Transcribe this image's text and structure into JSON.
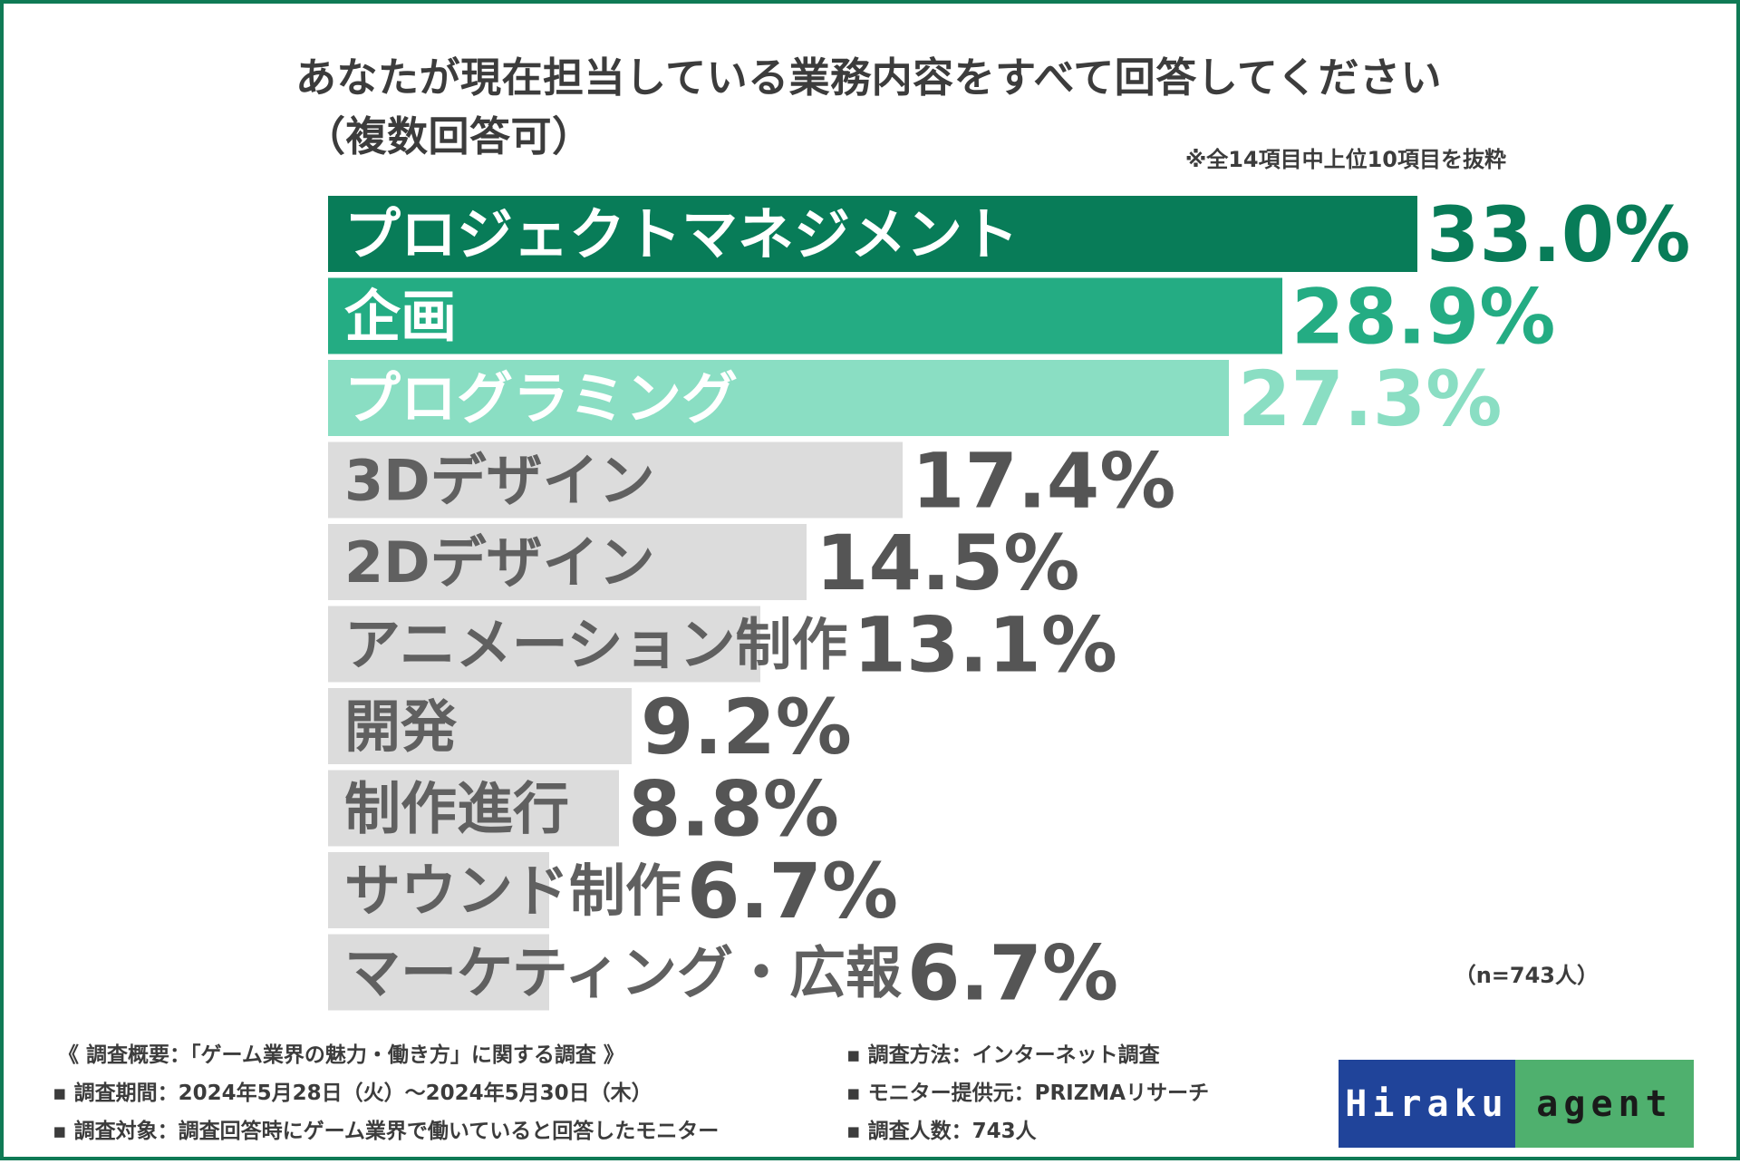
{
  "title_line1": "あなたが現在担当している業務内容をすべて回答してください",
  "title_line2": "（複数回答可）",
  "note": "※全14項目中上位10項目を抜粋",
  "sample_size": "（n=743人）",
  "chart_data": {
    "type": "bar",
    "orientation": "horizontal",
    "title": "あなたが現在担当している業務内容をすべて回答してください（複数回答可）",
    "categories": [
      "プロジェクトマネジメント",
      "企画",
      "プログラミング",
      "3Dデザイン",
      "2Dデザイン",
      "アニメーション制作",
      "開発",
      "制作進行",
      "サウンド制作",
      "マーケティング・広報"
    ],
    "values": [
      33.0,
      28.9,
      27.3,
      17.4,
      14.5,
      13.1,
      9.2,
      8.8,
      6.7,
      6.7
    ],
    "value_labels": [
      "33.0%",
      "28.9%",
      "27.3%",
      "17.4%",
      "14.5%",
      "13.1%",
      "9.2%",
      "8.8%",
      "6.7%",
      "6.7%"
    ],
    "unit": "%",
    "xlim": [
      0,
      33.0
    ],
    "bar_colors": [
      "#087c58",
      "#24ac83",
      "#8adec3",
      "#dcdcdc",
      "#dcdcdc",
      "#dcdcdc",
      "#dcdcdc",
      "#dcdcdc",
      "#dcdcdc",
      "#dcdcdc"
    ],
    "label_colors": [
      "#ffffff",
      "#ffffff",
      "#ffffff",
      "#606060",
      "#606060",
      "#606060",
      "#606060",
      "#606060",
      "#606060",
      "#606060"
    ],
    "value_colors": [
      "#087c58",
      "#24ac83",
      "#8adec3",
      "#555555",
      "#555555",
      "#555555",
      "#555555",
      "#555555",
      "#555555",
      "#555555"
    ]
  },
  "footer": {
    "left": [
      "《 調査概要：「ゲーム業界の魅力・働き方」に関する調査 》",
      "▪ 調査期間：2024年5月28日（火）〜2024年5月30日（木）",
      "▪ 調査対象：調査回答時にゲーム業界で働いていると回答したモニター"
    ],
    "right": [
      "▪ 調査方法：インターネット調査",
      "▪ モニター提供元：PRIZMAリサーチ",
      "▪ 調査人数：743人"
    ]
  },
  "logo": {
    "left_text": "Hiraku",
    "right_text": "agent",
    "left_color": "#20449a",
    "right_color": "#4fb06e"
  }
}
